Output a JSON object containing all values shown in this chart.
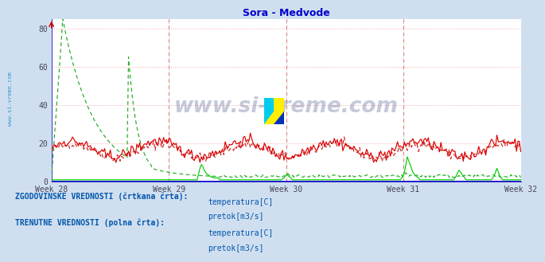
{
  "title": "Sora - Medvode",
  "title_color": "#0000cc",
  "bg_color": "#d0dff0",
  "plot_bg_color": "#ffffff",
  "xlim": [
    0,
    336
  ],
  "ylim": [
    0,
    85
  ],
  "yticks": [
    0,
    20,
    40,
    60,
    80
  ],
  "xtick_labels": [
    "Week 28",
    "Week 29",
    "Week 30",
    "Week 31",
    "Week 32"
  ],
  "xtick_positions": [
    0,
    84,
    168,
    252,
    336
  ],
  "watermark_text": "www.si-vreme.com",
  "sidebar_text": "www.si-vreme.com",
  "legend_label1": "ZGODOVINSKE VREDNOSTI (črtkana črta):",
  "legend_label2": "TRENUTNE VREDNOSTI (polna črta):",
  "legend_item_hist_temp": "temperatura[C]",
  "legend_item_hist_flow": "pretok[m3/s]",
  "legend_item_curr_temp": "temperatura[C]",
  "legend_item_curr_flow": "pretok[m3/s]",
  "legend_font_color": "#0055aa",
  "n_points": 336,
  "temp_hist_color": "#cc2222",
  "flow_hist_color": "#22aa22",
  "temp_curr_color": "#dd0000",
  "flow_curr_color": "#00cc00",
  "blue_line_color": "#0000cc",
  "grid_h_color": "#ffaaaa",
  "grid_v_color": "#aaccaa",
  "vline_color": "#dd4444"
}
